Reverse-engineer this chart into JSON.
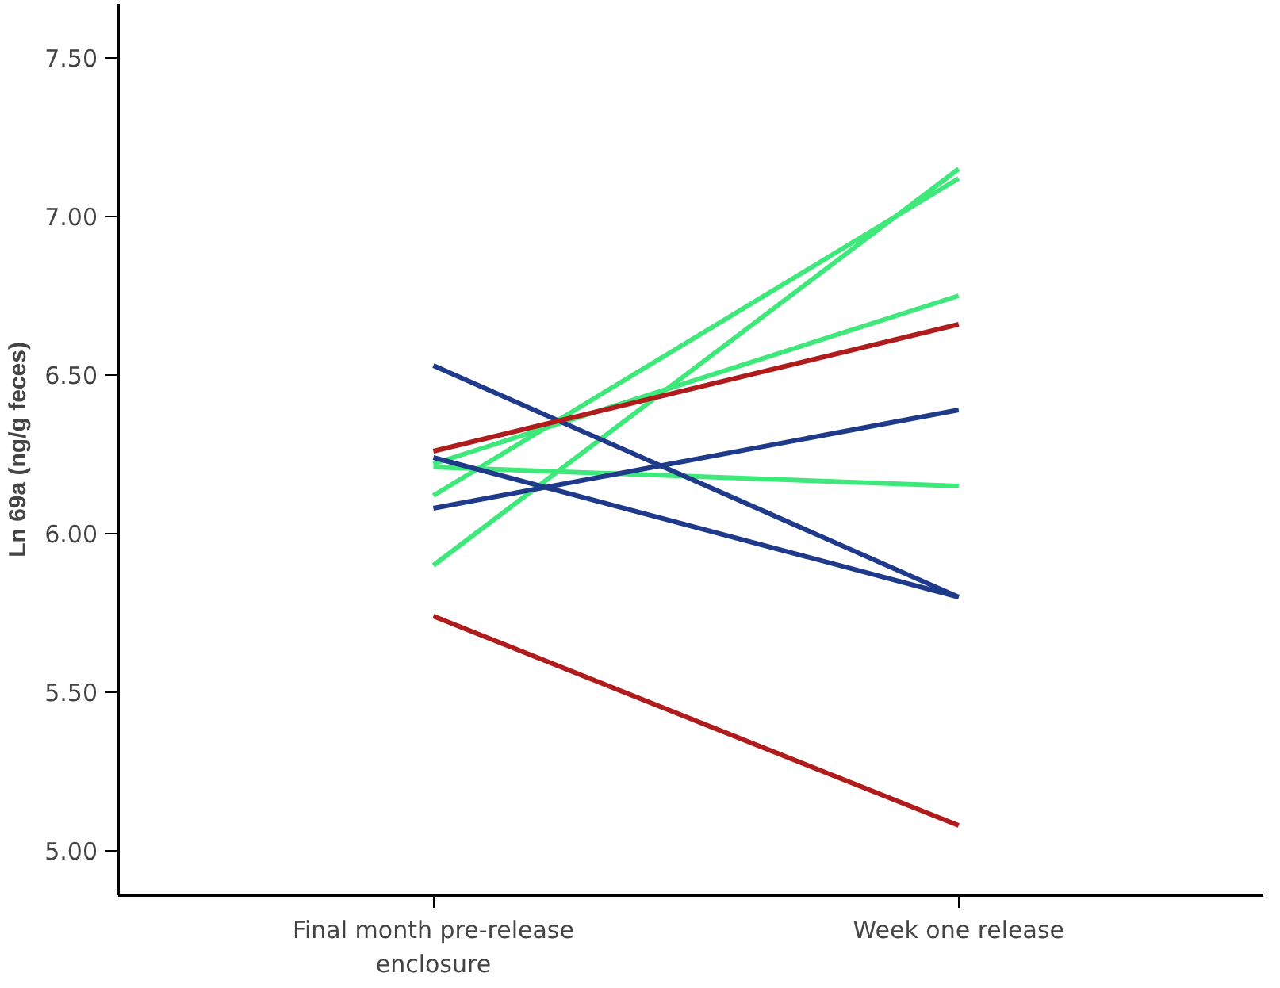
{
  "chart_data": {
    "type": "line",
    "ylabel": "Ln 69a (ng/g feces)",
    "categories": [
      "Final month pre-release enclosure",
      "Week one release"
    ],
    "ylim": [
      4.86,
      7.67
    ],
    "yticks": [
      {
        "value": 5,
        "label": "5.00"
      },
      {
        "value": 5.5,
        "label": "5.50"
      },
      {
        "value": 6,
        "label": "6.00"
      },
      {
        "value": 6.5,
        "label": "6.50"
      },
      {
        "value": 7,
        "label": "7.00"
      },
      {
        "value": 7.5,
        "label": "7.50"
      }
    ],
    "grid": false,
    "marker": "none",
    "line_style": "solid",
    "series": [
      {
        "color": "#3ee87a",
        "values": [
          6.21,
          6.15
        ]
      },
      {
        "color": "#3ee87a",
        "values": [
          6.22,
          6.75
        ]
      },
      {
        "color": "#3ee87a",
        "values": [
          6.12,
          7.12
        ]
      },
      {
        "color": "#3ee87a",
        "values": [
          5.9,
          7.15
        ]
      },
      {
        "color": "#1f3a8a",
        "values": [
          6.53,
          5.8
        ]
      },
      {
        "color": "#1f3a8a",
        "values": [
          6.24,
          5.8
        ]
      },
      {
        "color": "#1f3a8a",
        "values": [
          6.08,
          6.39
        ]
      },
      {
        "color": "#b01c1c",
        "values": [
          6.26,
          6.66
        ]
      },
      {
        "color": "#b01c1c",
        "values": [
          5.74,
          5.08
        ]
      }
    ]
  }
}
